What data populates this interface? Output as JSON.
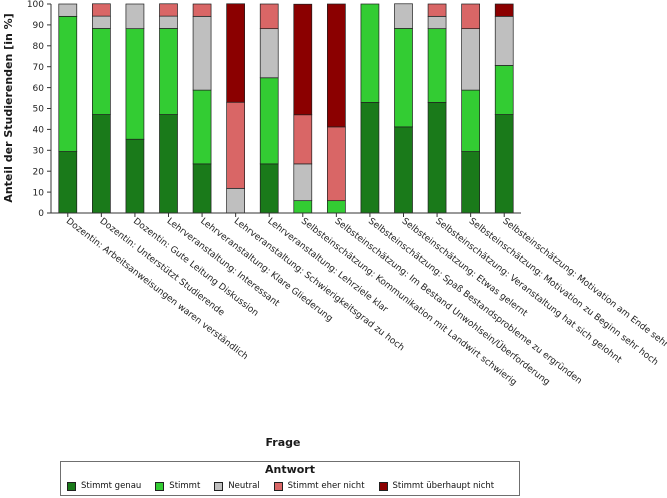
{
  "chart_data": {
    "type": "bar",
    "stacked": true,
    "ylabel": "Anteil der Studierenden [in %]",
    "xlabel": "Frage",
    "ylim": [
      0,
      100
    ],
    "yticks": [
      0,
      10,
      20,
      30,
      40,
      50,
      60,
      70,
      80,
      90,
      100
    ],
    "grid": false,
    "legend_placement": "bottom",
    "legend_title": "Antwort",
    "categories": [
      "Dozentin: Arbeitsanweisungen waren verständlich",
      "Dozentin: Unterstützt Studierende",
      "Dozentin: Gute Leitung Diskussion",
      "Lehrveranstaltung: Interessant",
      "Lehrveranstaltung: Klare Gliederung",
      "Lehrveranstaltung: Schwierigkeitsgrad zu hoch",
      "Lehrveranstaltung: Lehrziele klar",
      "Selbsteinschätzung: Kommunikation mit Landwirt schwierig",
      "Selbsteinschätzung: Im Bestand Unwohlsein/Überforderung",
      "Selbsteinschätzung: Spaß Bestandsprobleme zu ergründen",
      "Selbsteinschätzung: Etwas gelernt",
      "Selbsteinschätzung: Veranstaltung hat sich gelohnt",
      "Selbsteinschätzung: Motivation zu Beginn sehr hoch",
      "Selbsteinschätzung: Motivation am Ende sehr hoch"
    ],
    "series": [
      {
        "name": "Stimmt genau",
        "color": "#1a7a1a",
        "values": [
          29.4,
          47.1,
          35.3,
          47.1,
          23.5,
          0,
          23.5,
          0,
          0,
          52.9,
          41.2,
          52.9,
          29.4,
          47.1
        ]
      },
      {
        "name": "Stimmt",
        "color": "#33cc33",
        "values": [
          64.7,
          41.2,
          52.9,
          41.2,
          35.3,
          0,
          41.2,
          5.9,
          5.9,
          47.1,
          47.1,
          35.3,
          29.4,
          23.5
        ]
      },
      {
        "name": "Neutral",
        "color": "#bfbfbf",
        "values": [
          5.9,
          5.9,
          11.8,
          5.9,
          35.3,
          11.8,
          23.5,
          17.6,
          0,
          0,
          11.8,
          5.9,
          29.4,
          23.5
        ]
      },
      {
        "name": "Stimmt eher nicht",
        "color": "#d96666",
        "values": [
          0,
          5.9,
          0,
          5.9,
          5.9,
          41.2,
          11.8,
          23.5,
          35.3,
          0,
          0,
          5.9,
          11.8,
          0
        ]
      },
      {
        "name": "Stimmt überhaupt nicht",
        "color": "#8b0000",
        "values": [
          0,
          0,
          0,
          0,
          0,
          47.1,
          0,
          52.9,
          58.8,
          0,
          0,
          0,
          0,
          5.9
        ]
      }
    ]
  }
}
